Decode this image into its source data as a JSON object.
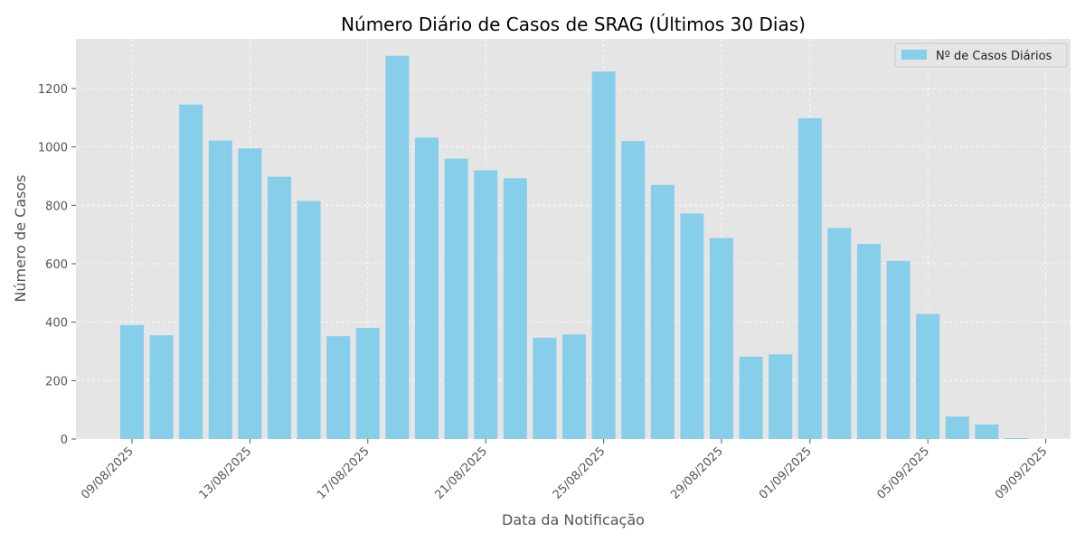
{
  "chart_data": {
    "type": "bar",
    "title": "Número Diário de Casos de SRAG (Últimos 30 Dias)",
    "xlabel": "Data da Notificação",
    "ylabel": "Número de Casos",
    "categories": [
      "09/08/2025",
      "10/08/2025",
      "11/08/2025",
      "12/08/2025",
      "13/08/2025",
      "14/08/2025",
      "15/08/2025",
      "16/08/2025",
      "17/08/2025",
      "18/08/2025",
      "19/08/2025",
      "20/08/2025",
      "21/08/2025",
      "22/08/2025",
      "23/08/2025",
      "24/08/2025",
      "25/08/2025",
      "26/08/2025",
      "27/08/2025",
      "28/08/2025",
      "29/08/2025",
      "30/08/2025",
      "31/08/2025",
      "01/09/2025",
      "02/09/2025",
      "03/09/2025",
      "04/09/2025",
      "05/09/2025",
      "06/09/2025",
      "07/09/2025",
      "08/09/2025"
    ],
    "series": [
      {
        "name": "Nº de Casos Diários",
        "color": "#87CEEB",
        "values": [
          390,
          355,
          1145,
          1022,
          995,
          898,
          815,
          352,
          380,
          1312,
          1032,
          960,
          920,
          893,
          347,
          358,
          1258,
          1020,
          870,
          772,
          688,
          282,
          290,
          1098,
          722,
          668,
          610,
          428,
          77,
          50,
          3
        ]
      }
    ],
    "xticks": [
      "09/08/2025",
      "13/08/2025",
      "17/08/2025",
      "21/08/2025",
      "25/08/2025",
      "29/08/2025",
      "01/09/2025",
      "05/09/2025",
      "09/09/2025"
    ],
    "yticks": [
      0,
      200,
      400,
      600,
      800,
      1000,
      1200
    ],
    "ylim": [
      0,
      1370
    ],
    "grid": true,
    "legend": "top-right",
    "colors": {
      "plot_bg": "#E5E5E5",
      "grid": "#FFFFFF",
      "text": "#555555"
    }
  }
}
